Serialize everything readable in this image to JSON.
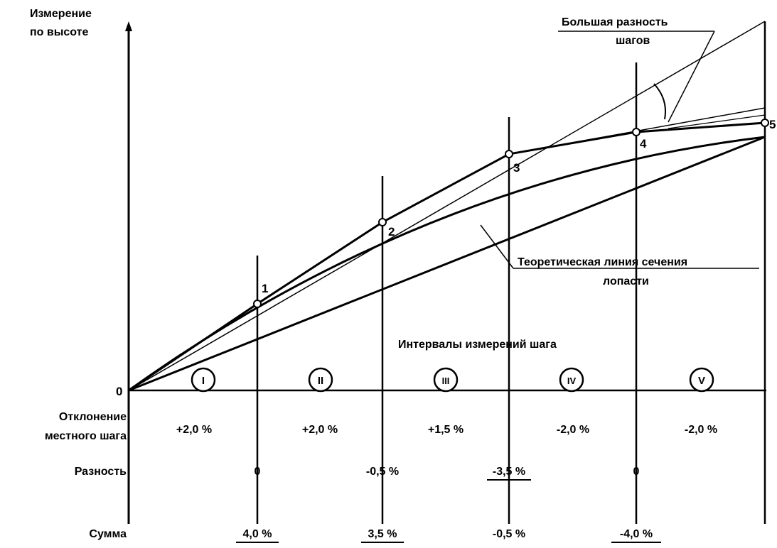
{
  "axis": {
    "y_label": [
      "Измерение",
      "по высоте"
    ],
    "origin_label": "0",
    "end_label": "5"
  },
  "points": [
    "1",
    "2",
    "3",
    "4"
  ],
  "callouts": {
    "big_difference": [
      "Большая разность",
      "шагов"
    ],
    "theoretical_line": [
      "Теоретическая линия сечения",
      "лопасти"
    ]
  },
  "intervals": {
    "title": "Интервалы измерений шага",
    "labels": [
      "I",
      "II",
      "III",
      "IV",
      "V"
    ]
  },
  "rows": {
    "deviation": {
      "label": [
        "Отклонение",
        "местного шага"
      ],
      "values": [
        "+2,0 %",
        "+2,0 %",
        "+1,5 %",
        "-2,0 %",
        "-2,0 %"
      ]
    },
    "difference": {
      "label": "Разность",
      "values": [
        "0",
        "-0,5 %",
        "-3,5 %",
        "0"
      ]
    },
    "sum": {
      "label": "Сумма",
      "values": [
        "4,0 %",
        "3,5 %",
        "-0,5 %",
        "-4,0 %"
      ]
    }
  }
}
